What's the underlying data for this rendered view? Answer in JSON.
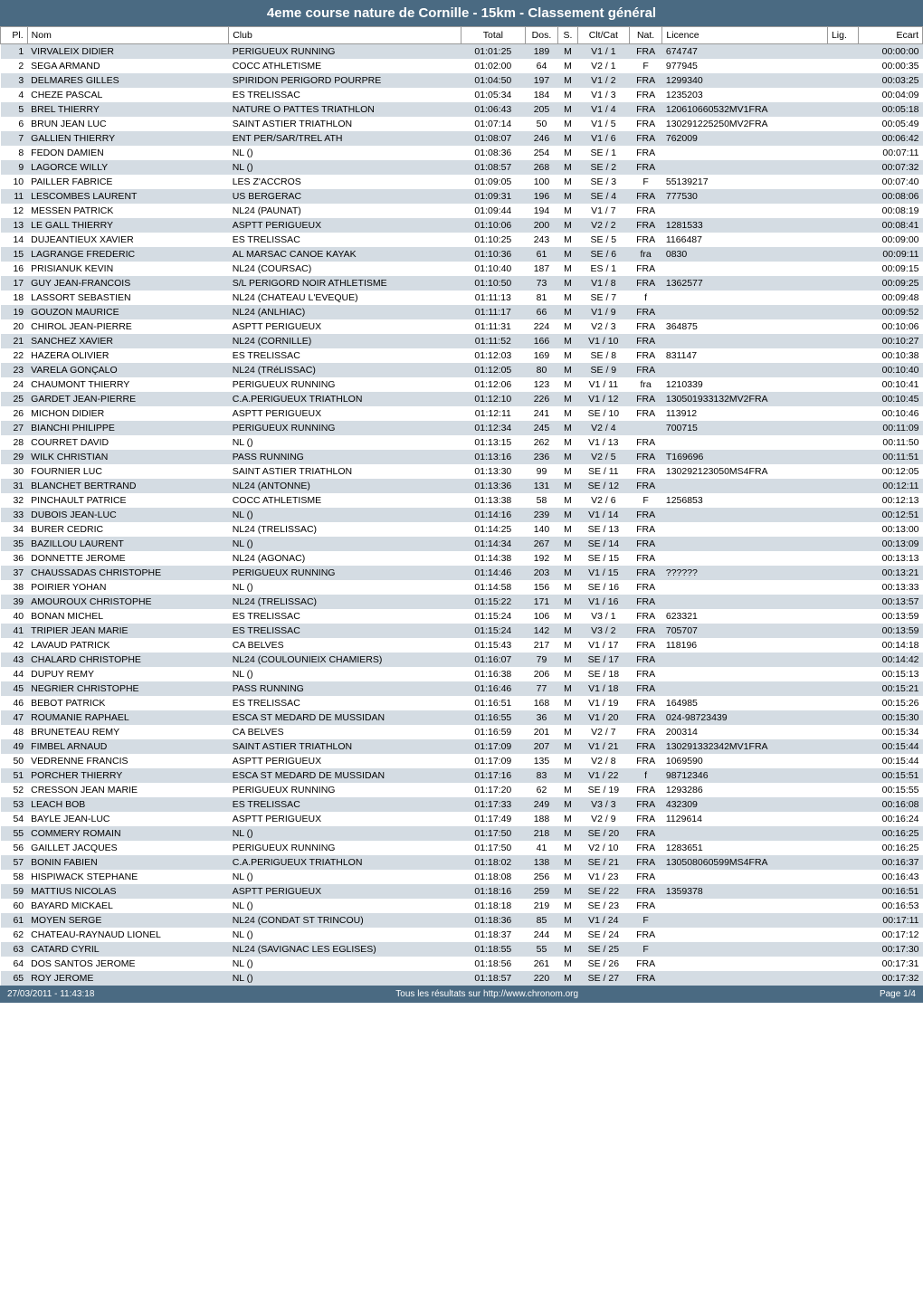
{
  "title": "4eme course nature de Cornille - 15km - Classement général",
  "columns": [
    "Pl.",
    "Nom",
    "Club",
    "Total",
    "Dos.",
    "S.",
    "Clt/Cat",
    "Nat.",
    "Licence",
    "Lig.",
    "Ecart"
  ],
  "colors": {
    "header_bg": "#4a6a82",
    "header_text": "#ffffff",
    "row_odd": "#d4dce3",
    "row_even": "#ffffff",
    "border": "#999999"
  },
  "footer": {
    "left": "27/03/2011 - 11:43:18",
    "center": "Tous les résultats sur http://www.chronom.org",
    "right": "Page 1/4"
  },
  "rows": [
    {
      "pl": "1",
      "nom": "VIRVALEIX DIDIER",
      "club": "PERIGUEUX RUNNING",
      "total": "01:01:25",
      "dos": "189",
      "s": "M",
      "cat": "V1 / 1",
      "nat": "FRA",
      "lic": "674747",
      "lig": "",
      "ecart": "00:00:00"
    },
    {
      "pl": "2",
      "nom": "SEGA ARMAND",
      "club": "COCC ATHLETISME",
      "total": "01:02:00",
      "dos": "64",
      "s": "M",
      "cat": "V2 / 1",
      "nat": "F",
      "lic": "977945",
      "lig": "",
      "ecart": "00:00:35"
    },
    {
      "pl": "3",
      "nom": "DELMARES GILLES",
      "club": "SPIRIDON PERIGORD POURPRE",
      "total": "01:04:50",
      "dos": "197",
      "s": "M",
      "cat": "V1 / 2",
      "nat": "FRA",
      "lic": "1299340",
      "lig": "",
      "ecart": "00:03:25"
    },
    {
      "pl": "4",
      "nom": "CHEZE PASCAL",
      "club": "ES TRELISSAC",
      "total": "01:05:34",
      "dos": "184",
      "s": "M",
      "cat": "V1 / 3",
      "nat": "FRA",
      "lic": "1235203",
      "lig": "",
      "ecart": "00:04:09"
    },
    {
      "pl": "5",
      "nom": "BREL THIERRY",
      "club": "NATURE O PATTES TRIATHLON",
      "total": "01:06:43",
      "dos": "205",
      "s": "M",
      "cat": "V1 / 4",
      "nat": "FRA",
      "lic": "120610660532MV1FRA",
      "lig": "",
      "ecart": "00:05:18"
    },
    {
      "pl": "6",
      "nom": "BRUN JEAN LUC",
      "club": "SAINT ASTIER TRIATHLON",
      "total": "01:07:14",
      "dos": "50",
      "s": "M",
      "cat": "V1 / 5",
      "nat": "FRA",
      "lic": "130291225250MV2FRA",
      "lig": "",
      "ecart": "00:05:49"
    },
    {
      "pl": "7",
      "nom": "GALLIEN THIERRY",
      "club": "ENT PER/SAR/TREL ATH",
      "total": "01:08:07",
      "dos": "246",
      "s": "M",
      "cat": "V1 / 6",
      "nat": "FRA",
      "lic": "762009",
      "lig": "",
      "ecart": "00:06:42"
    },
    {
      "pl": "8",
      "nom": "FEDON DAMIEN",
      "club": "NL ()",
      "total": "01:08:36",
      "dos": "254",
      "s": "M",
      "cat": "SE / 1",
      "nat": "FRA",
      "lic": "",
      "lig": "",
      "ecart": "00:07:11"
    },
    {
      "pl": "9",
      "nom": "LAGORCE WILLY",
      "club": "NL ()",
      "total": "01:08:57",
      "dos": "268",
      "s": "M",
      "cat": "SE / 2",
      "nat": "FRA",
      "lic": "",
      "lig": "",
      "ecart": "00:07:32"
    },
    {
      "pl": "10",
      "nom": "PAILLER FABRICE",
      "club": "LES Z'ACCROS",
      "total": "01:09:05",
      "dos": "100",
      "s": "M",
      "cat": "SE / 3",
      "nat": "F",
      "lic": "55139217",
      "lig": "",
      "ecart": "00:07:40"
    },
    {
      "pl": "11",
      "nom": "LESCOMBES LAURENT",
      "club": "US BERGERAC",
      "total": "01:09:31",
      "dos": "196",
      "s": "M",
      "cat": "SE / 4",
      "nat": "FRA",
      "lic": "777530",
      "lig": "",
      "ecart": "00:08:06"
    },
    {
      "pl": "12",
      "nom": "MESSEN PATRICK",
      "club": "NL24 (PAUNAT)",
      "total": "01:09:44",
      "dos": "194",
      "s": "M",
      "cat": "V1 / 7",
      "nat": "FRA",
      "lic": "",
      "lig": "",
      "ecart": "00:08:19"
    },
    {
      "pl": "13",
      "nom": "LE GALL THIERRY",
      "club": "ASPTT PERIGUEUX",
      "total": "01:10:06",
      "dos": "200",
      "s": "M",
      "cat": "V2 / 2",
      "nat": "FRA",
      "lic": "1281533",
      "lig": "",
      "ecart": "00:08:41"
    },
    {
      "pl": "14",
      "nom": "DUJEANTIEUX XAVIER",
      "club": "ES TRELISSAC",
      "total": "01:10:25",
      "dos": "243",
      "s": "M",
      "cat": "SE / 5",
      "nat": "FRA",
      "lic": "1166487",
      "lig": "",
      "ecart": "00:09:00"
    },
    {
      "pl": "15",
      "nom": "LAGRANGE FREDERIC",
      "club": "AL MARSAC CANOE KAYAK",
      "total": "01:10:36",
      "dos": "61",
      "s": "M",
      "cat": "SE / 6",
      "nat": "fra",
      "lic": "0830",
      "lig": "",
      "ecart": "00:09:11"
    },
    {
      "pl": "16",
      "nom": "PRISIANUK KEVIN",
      "club": "NL24 (COURSAC)",
      "total": "01:10:40",
      "dos": "187",
      "s": "M",
      "cat": "ES / 1",
      "nat": "FRA",
      "lic": "",
      "lig": "",
      "ecart": "00:09:15"
    },
    {
      "pl": "17",
      "nom": "GUY JEAN-FRANCOIS",
      "club": "S/L PERIGORD NOIR ATHLETISME",
      "total": "01:10:50",
      "dos": "73",
      "s": "M",
      "cat": "V1 / 8",
      "nat": "FRA",
      "lic": "1362577",
      "lig": "",
      "ecart": "00:09:25"
    },
    {
      "pl": "18",
      "nom": "LASSORT SEBASTIEN",
      "club": "NL24 (CHATEAU L'EVEQUE)",
      "total": "01:11:13",
      "dos": "81",
      "s": "M",
      "cat": "SE / 7",
      "nat": "f",
      "lic": "",
      "lig": "",
      "ecart": "00:09:48"
    },
    {
      "pl": "19",
      "nom": "GOUZON MAURICE",
      "club": "NL24 (ANLHIAC)",
      "total": "01:11:17",
      "dos": "66",
      "s": "M",
      "cat": "V1 / 9",
      "nat": "FRA",
      "lic": "",
      "lig": "",
      "ecart": "00:09:52"
    },
    {
      "pl": "20",
      "nom": "CHIROL JEAN-PIERRE",
      "club": "ASPTT PERIGUEUX",
      "total": "01:11:31",
      "dos": "224",
      "s": "M",
      "cat": "V2 / 3",
      "nat": "FRA",
      "lic": "364875",
      "lig": "",
      "ecart": "00:10:06"
    },
    {
      "pl": "21",
      "nom": "SANCHEZ XAVIER",
      "club": "NL24 (CORNILLE)",
      "total": "01:11:52",
      "dos": "166",
      "s": "M",
      "cat": "V1 / 10",
      "nat": "FRA",
      "lic": "",
      "lig": "",
      "ecart": "00:10:27"
    },
    {
      "pl": "22",
      "nom": "HAZERA OLIVIER",
      "club": "ES TRELISSAC",
      "total": "01:12:03",
      "dos": "169",
      "s": "M",
      "cat": "SE / 8",
      "nat": "FRA",
      "lic": "831147",
      "lig": "",
      "ecart": "00:10:38"
    },
    {
      "pl": "23",
      "nom": "VARELA GONÇALO",
      "club": "NL24 (TRéLISSAC)",
      "total": "01:12:05",
      "dos": "80",
      "s": "M",
      "cat": "SE / 9",
      "nat": "FRA",
      "lic": "",
      "lig": "",
      "ecart": "00:10:40"
    },
    {
      "pl": "24",
      "nom": "CHAUMONT THIERRY",
      "club": "PERIGUEUX RUNNING",
      "total": "01:12:06",
      "dos": "123",
      "s": "M",
      "cat": "V1 / 11",
      "nat": "fra",
      "lic": "1210339",
      "lig": "",
      "ecart": "00:10:41"
    },
    {
      "pl": "25",
      "nom": "GARDET JEAN-PIERRE",
      "club": "C.A.PERIGUEUX TRIATHLON",
      "total": "01:12:10",
      "dos": "226",
      "s": "M",
      "cat": "V1 / 12",
      "nat": "FRA",
      "lic": "130501933132MV2FRA",
      "lig": "",
      "ecart": "00:10:45"
    },
    {
      "pl": "26",
      "nom": "MICHON DIDIER",
      "club": "ASPTT PERIGUEUX",
      "total": "01:12:11",
      "dos": "241",
      "s": "M",
      "cat": "SE / 10",
      "nat": "FRA",
      "lic": "113912",
      "lig": "",
      "ecart": "00:10:46"
    },
    {
      "pl": "27",
      "nom": "BIANCHI PHILIPPE",
      "club": "PERIGUEUX RUNNING",
      "total": "01:12:34",
      "dos": "245",
      "s": "M",
      "cat": "V2 / 4",
      "nat": "",
      "lic": "700715",
      "lig": "",
      "ecart": "00:11:09"
    },
    {
      "pl": "28",
      "nom": "COURRET DAVID",
      "club": "NL ()",
      "total": "01:13:15",
      "dos": "262",
      "s": "M",
      "cat": "V1 / 13",
      "nat": "FRA",
      "lic": "",
      "lig": "",
      "ecart": "00:11:50"
    },
    {
      "pl": "29",
      "nom": "WILK CHRISTIAN",
      "club": "PASS RUNNING",
      "total": "01:13:16",
      "dos": "236",
      "s": "M",
      "cat": "V2 / 5",
      "nat": "FRA",
      "lic": "T169696",
      "lig": "",
      "ecart": "00:11:51"
    },
    {
      "pl": "30",
      "nom": "FOURNIER LUC",
      "club": "SAINT ASTIER TRIATHLON",
      "total": "01:13:30",
      "dos": "99",
      "s": "M",
      "cat": "SE / 11",
      "nat": "FRA",
      "lic": "130292123050MS4FRA",
      "lig": "",
      "ecart": "00:12:05"
    },
    {
      "pl": "31",
      "nom": "BLANCHET BERTRAND",
      "club": "NL24 (ANTONNE)",
      "total": "01:13:36",
      "dos": "131",
      "s": "M",
      "cat": "SE / 12",
      "nat": "FRA",
      "lic": "",
      "lig": "",
      "ecart": "00:12:11"
    },
    {
      "pl": "32",
      "nom": "PINCHAULT PATRICE",
      "club": "COCC ATHLETISME",
      "total": "01:13:38",
      "dos": "58",
      "s": "M",
      "cat": "V2 / 6",
      "nat": "F",
      "lic": "1256853",
      "lig": "",
      "ecart": "00:12:13"
    },
    {
      "pl": "33",
      "nom": "DUBOIS JEAN-LUC",
      "club": "NL ()",
      "total": "01:14:16",
      "dos": "239",
      "s": "M",
      "cat": "V1 / 14",
      "nat": "FRA",
      "lic": "",
      "lig": "",
      "ecart": "00:12:51"
    },
    {
      "pl": "34",
      "nom": "BURER CEDRIC",
      "club": "NL24 (TRELISSAC)",
      "total": "01:14:25",
      "dos": "140",
      "s": "M",
      "cat": "SE / 13",
      "nat": "FRA",
      "lic": "",
      "lig": "",
      "ecart": "00:13:00"
    },
    {
      "pl": "35",
      "nom": "BAZILLOU LAURENT",
      "club": "NL ()",
      "total": "01:14:34",
      "dos": "267",
      "s": "M",
      "cat": "SE / 14",
      "nat": "FRA",
      "lic": "",
      "lig": "",
      "ecart": "00:13:09"
    },
    {
      "pl": "36",
      "nom": "DONNETTE JEROME",
      "club": "NL24 (AGONAC)",
      "total": "01:14:38",
      "dos": "192",
      "s": "M",
      "cat": "SE / 15",
      "nat": "FRA",
      "lic": "",
      "lig": "",
      "ecart": "00:13:13"
    },
    {
      "pl": "37",
      "nom": "CHAUSSADAS CHRISTOPHE",
      "club": "PERIGUEUX RUNNING",
      "total": "01:14:46",
      "dos": "203",
      "s": "M",
      "cat": "V1 / 15",
      "nat": "FRA",
      "lic": "??????",
      "lig": "",
      "ecart": "00:13:21"
    },
    {
      "pl": "38",
      "nom": "POIRIER YOHAN",
      "club": "NL ()",
      "total": "01:14:58",
      "dos": "156",
      "s": "M",
      "cat": "SE / 16",
      "nat": "FRA",
      "lic": "",
      "lig": "",
      "ecart": "00:13:33"
    },
    {
      "pl": "39",
      "nom": "AMOUROUX CHRISTOPHE",
      "club": "NL24 (TRELISSAC)",
      "total": "01:15:22",
      "dos": "171",
      "s": "M",
      "cat": "V1 / 16",
      "nat": "FRA",
      "lic": "",
      "lig": "",
      "ecart": "00:13:57"
    },
    {
      "pl": "40",
      "nom": "BONAN MICHEL",
      "club": "ES TRELISSAC",
      "total": "01:15:24",
      "dos": "106",
      "s": "M",
      "cat": "V3 / 1",
      "nat": "FRA",
      "lic": "623321",
      "lig": "",
      "ecart": "00:13:59"
    },
    {
      "pl": "41",
      "nom": "TRIPIER JEAN MARIE",
      "club": "ES TRELISSAC",
      "total": "01:15:24",
      "dos": "142",
      "s": "M",
      "cat": "V3 / 2",
      "nat": "FRA",
      "lic": "705707",
      "lig": "",
      "ecart": "00:13:59"
    },
    {
      "pl": "42",
      "nom": "LAVAUD PATRICK",
      "club": "CA BELVES",
      "total": "01:15:43",
      "dos": "217",
      "s": "M",
      "cat": "V1 / 17",
      "nat": "FRA",
      "lic": "118196",
      "lig": "",
      "ecart": "00:14:18"
    },
    {
      "pl": "43",
      "nom": "CHALARD CHRISTOPHE",
      "club": "NL24 (COULOUNIEIX CHAMIERS)",
      "total": "01:16:07",
      "dos": "79",
      "s": "M",
      "cat": "SE / 17",
      "nat": "FRA",
      "lic": "",
      "lig": "",
      "ecart": "00:14:42"
    },
    {
      "pl": "44",
      "nom": "DUPUY REMY",
      "club": "NL ()",
      "total": "01:16:38",
      "dos": "206",
      "s": "M",
      "cat": "SE / 18",
      "nat": "FRA",
      "lic": "",
      "lig": "",
      "ecart": "00:15:13"
    },
    {
      "pl": "45",
      "nom": "NEGRIER CHRISTOPHE",
      "club": "PASS RUNNING",
      "total": "01:16:46",
      "dos": "77",
      "s": "M",
      "cat": "V1 / 18",
      "nat": "FRA",
      "lic": "",
      "lig": "",
      "ecart": "00:15:21"
    },
    {
      "pl": "46",
      "nom": "BEBOT PATRICK",
      "club": "ES TRELISSAC",
      "total": "01:16:51",
      "dos": "168",
      "s": "M",
      "cat": "V1 / 19",
      "nat": "FRA",
      "lic": "164985",
      "lig": "",
      "ecart": "00:15:26"
    },
    {
      "pl": "47",
      "nom": "ROUMANIE RAPHAEL",
      "club": "ESCA ST MEDARD DE MUSSIDAN",
      "total": "01:16:55",
      "dos": "36",
      "s": "M",
      "cat": "V1 / 20",
      "nat": "FRA",
      "lic": "024-98723439",
      "lig": "",
      "ecart": "00:15:30"
    },
    {
      "pl": "48",
      "nom": "BRUNETEAU REMY",
      "club": "CA BELVES",
      "total": "01:16:59",
      "dos": "201",
      "s": "M",
      "cat": "V2 / 7",
      "nat": "FRA",
      "lic": "200314",
      "lig": "",
      "ecart": "00:15:34"
    },
    {
      "pl": "49",
      "nom": "FIMBEL ARNAUD",
      "club": "SAINT ASTIER TRIATHLON",
      "total": "01:17:09",
      "dos": "207",
      "s": "M",
      "cat": "V1 / 21",
      "nat": "FRA",
      "lic": "130291332342MV1FRA",
      "lig": "",
      "ecart": "00:15:44"
    },
    {
      "pl": "50",
      "nom": "VEDRENNE FRANCIS",
      "club": "ASPTT PERIGUEUX",
      "total": "01:17:09",
      "dos": "135",
      "s": "M",
      "cat": "V2 / 8",
      "nat": "FRA",
      "lic": "1069590",
      "lig": "",
      "ecart": "00:15:44"
    },
    {
      "pl": "51",
      "nom": "PORCHER THIERRY",
      "club": "ESCA ST MEDARD DE MUSSIDAN",
      "total": "01:17:16",
      "dos": "83",
      "s": "M",
      "cat": "V1 / 22",
      "nat": "f",
      "lic": "98712346",
      "lig": "",
      "ecart": "00:15:51"
    },
    {
      "pl": "52",
      "nom": "CRESSON JEAN MARIE",
      "club": "PERIGUEUX RUNNING",
      "total": "01:17:20",
      "dos": "62",
      "s": "M",
      "cat": "SE / 19",
      "nat": "FRA",
      "lic": "1293286",
      "lig": "",
      "ecart": "00:15:55"
    },
    {
      "pl": "53",
      "nom": "LEACH BOB",
      "club": "ES TRELISSAC",
      "total": "01:17:33",
      "dos": "249",
      "s": "M",
      "cat": "V3 / 3",
      "nat": "FRA",
      "lic": "432309",
      "lig": "",
      "ecart": "00:16:08"
    },
    {
      "pl": "54",
      "nom": "BAYLE JEAN-LUC",
      "club": "ASPTT PERIGUEUX",
      "total": "01:17:49",
      "dos": "188",
      "s": "M",
      "cat": "V2 / 9",
      "nat": "FRA",
      "lic": "1129614",
      "lig": "",
      "ecart": "00:16:24"
    },
    {
      "pl": "55",
      "nom": "COMMERY ROMAIN",
      "club": "NL ()",
      "total": "01:17:50",
      "dos": "218",
      "s": "M",
      "cat": "SE / 20",
      "nat": "FRA",
      "lic": "",
      "lig": "",
      "ecart": "00:16:25"
    },
    {
      "pl": "56",
      "nom": "GAILLET JACQUES",
      "club": "PERIGUEUX RUNNING",
      "total": "01:17:50",
      "dos": "41",
      "s": "M",
      "cat": "V2 / 10",
      "nat": "FRA",
      "lic": "1283651",
      "lig": "",
      "ecart": "00:16:25"
    },
    {
      "pl": "57",
      "nom": "BONIN FABIEN",
      "club": "C.A.PERIGUEUX TRIATHLON",
      "total": "01:18:02",
      "dos": "138",
      "s": "M",
      "cat": "SE / 21",
      "nat": "FRA",
      "lic": "130508060599MS4FRA",
      "lig": "",
      "ecart": "00:16:37"
    },
    {
      "pl": "58",
      "nom": "HISPIWACK STEPHANE",
      "club": "NL ()",
      "total": "01:18:08",
      "dos": "256",
      "s": "M",
      "cat": "V1 / 23",
      "nat": "FRA",
      "lic": "",
      "lig": "",
      "ecart": "00:16:43"
    },
    {
      "pl": "59",
      "nom": "MATTIUS NICOLAS",
      "club": "ASPTT PERIGUEUX",
      "total": "01:18:16",
      "dos": "259",
      "s": "M",
      "cat": "SE / 22",
      "nat": "FRA",
      "lic": "1359378",
      "lig": "",
      "ecart": "00:16:51"
    },
    {
      "pl": "60",
      "nom": "BAYARD MICKAEL",
      "club": "NL ()",
      "total": "01:18:18",
      "dos": "219",
      "s": "M",
      "cat": "SE / 23",
      "nat": "FRA",
      "lic": "",
      "lig": "",
      "ecart": "00:16:53"
    },
    {
      "pl": "61",
      "nom": "MOYEN SERGE",
      "club": "NL24 (CONDAT ST TRINCOU)",
      "total": "01:18:36",
      "dos": "85",
      "s": "M",
      "cat": "V1 / 24",
      "nat": "F",
      "lic": "",
      "lig": "",
      "ecart": "00:17:11"
    },
    {
      "pl": "62",
      "nom": "CHATEAU-RAYNAUD LIONEL",
      "club": "NL ()",
      "total": "01:18:37",
      "dos": "244",
      "s": "M",
      "cat": "SE / 24",
      "nat": "FRA",
      "lic": "",
      "lig": "",
      "ecart": "00:17:12"
    },
    {
      "pl": "63",
      "nom": "CATARD CYRIL",
      "club": "NL24 (SAVIGNAC LES EGLISES)",
      "total": "01:18:55",
      "dos": "55",
      "s": "M",
      "cat": "SE / 25",
      "nat": "F",
      "lic": "",
      "lig": "",
      "ecart": "00:17:30"
    },
    {
      "pl": "64",
      "nom": "DOS SANTOS JEROME",
      "club": "NL ()",
      "total": "01:18:56",
      "dos": "261",
      "s": "M",
      "cat": "SE / 26",
      "nat": "FRA",
      "lic": "",
      "lig": "",
      "ecart": "00:17:31"
    },
    {
      "pl": "65",
      "nom": "ROY JEROME",
      "club": "NL ()",
      "total": "01:18:57",
      "dos": "220",
      "s": "M",
      "cat": "SE / 27",
      "nat": "FRA",
      "lic": "",
      "lig": "",
      "ecart": "00:17:32"
    }
  ]
}
